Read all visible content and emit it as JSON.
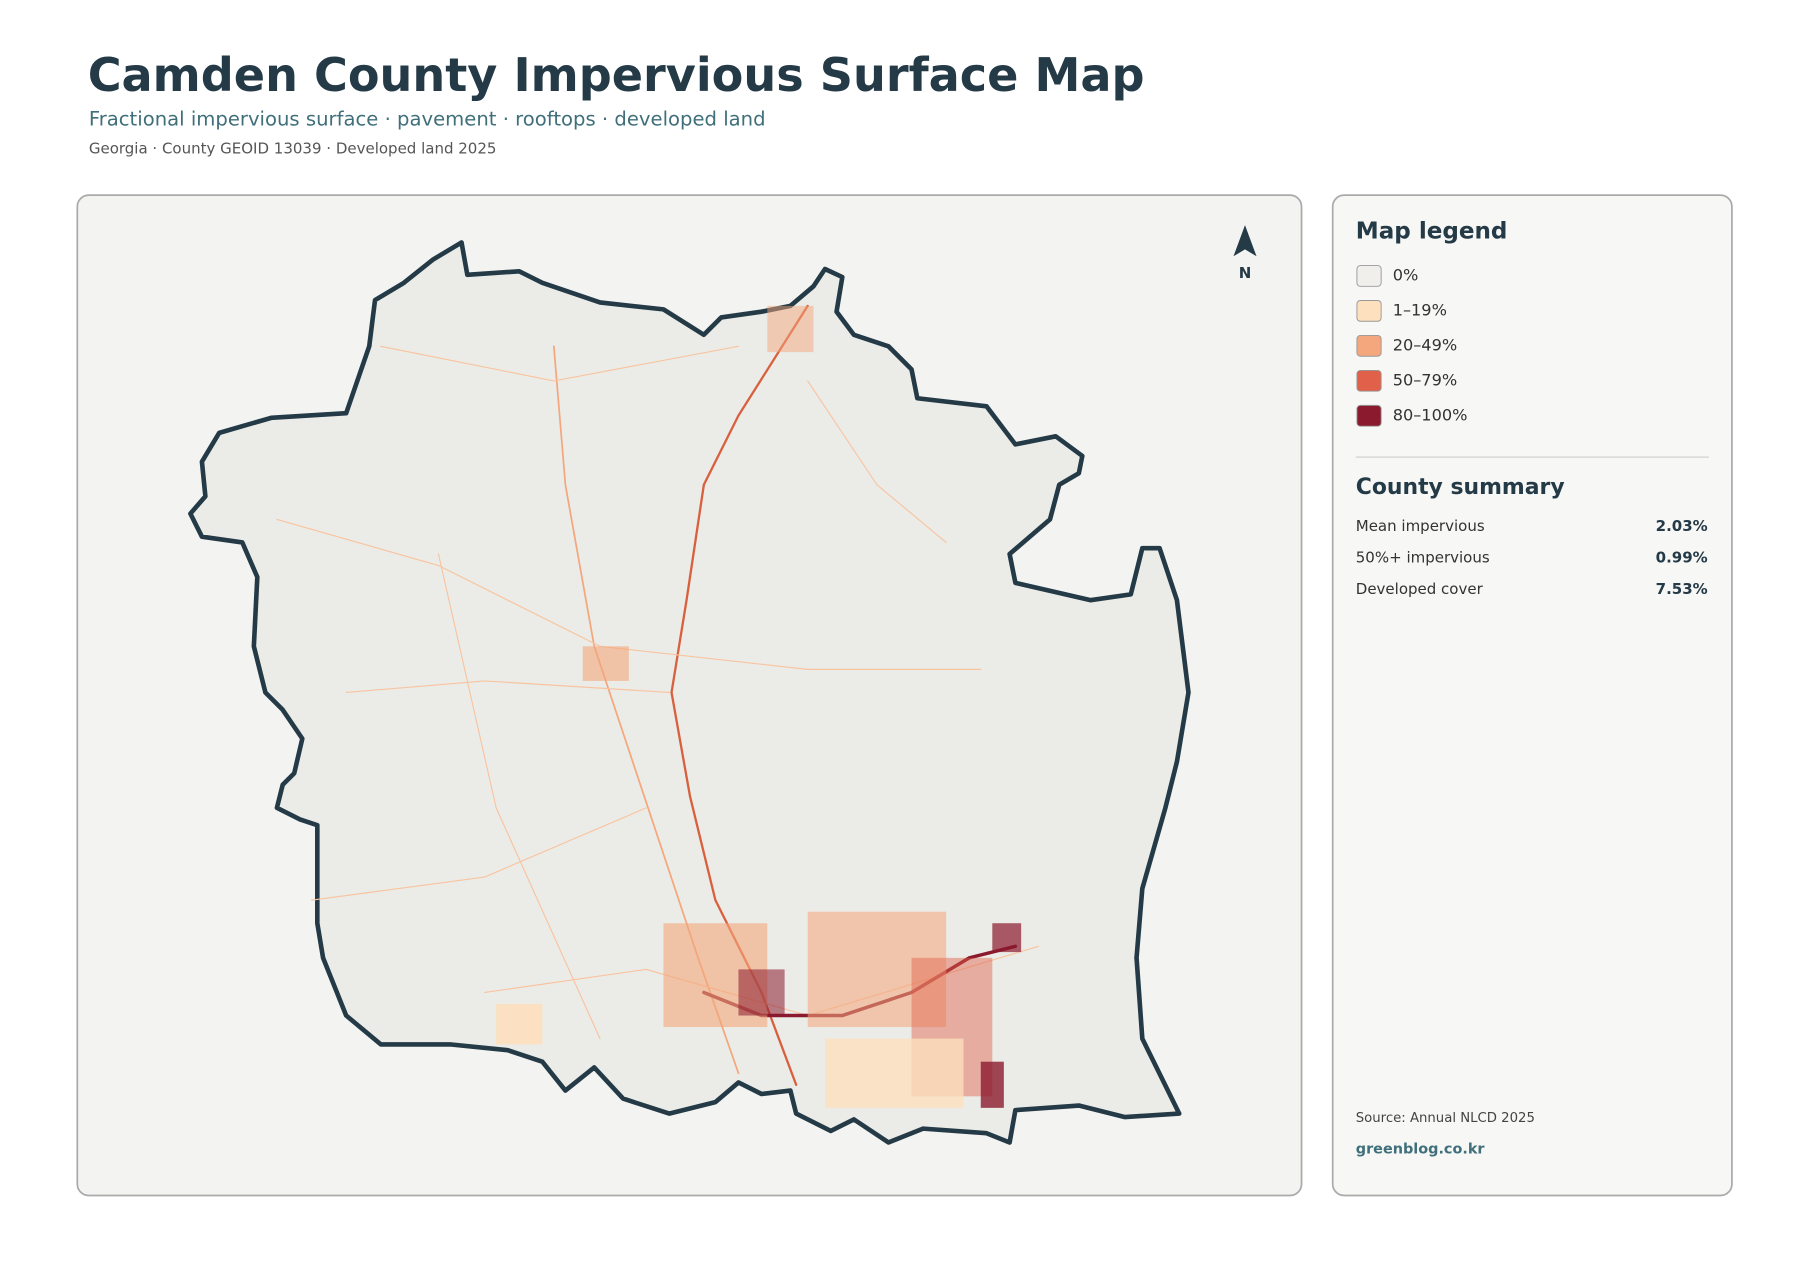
{
  "header": {
    "title": "Camden County Impervious Surface Map",
    "subtitle": "Fractional impervious surface · pavement · rooftops · developed land",
    "meta": "Georgia · County GEOID 13039 · Developed land 2025"
  },
  "map": {
    "north_label": "N"
  },
  "legend": {
    "title": "Map legend",
    "items": [
      {
        "label": "0%",
        "color": "#f0efeb"
      },
      {
        "label": "1–19%",
        "color": "#fde0bd"
      },
      {
        "label": "20–49%",
        "color": "#f4a67c"
      },
      {
        "label": "50–79%",
        "color": "#e0604a"
      },
      {
        "label": "80–100%",
        "color": "#8b1a2e"
      }
    ]
  },
  "summary": {
    "title": "County summary",
    "rows": [
      {
        "label": "Mean impervious",
        "value": "2.03%"
      },
      {
        "label": "50%+ impervious",
        "value": "0.99%"
      },
      {
        "label": "Developed cover",
        "value": "7.53%"
      }
    ]
  },
  "footer": {
    "source": "Source: Annual NLCD 2025",
    "site": "greenblog.co.kr"
  }
}
